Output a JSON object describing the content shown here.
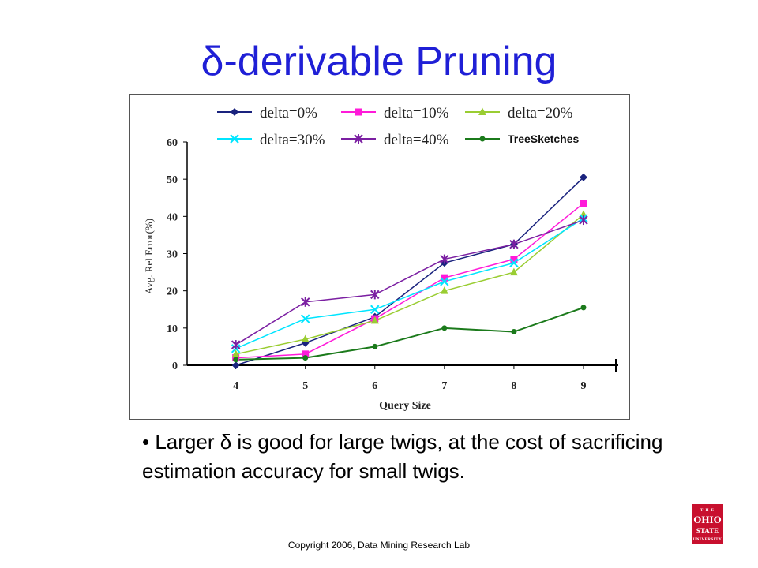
{
  "slide": {
    "title": "δ-derivable Pruning",
    "bullet_marker": "•",
    "bullet": "Larger δ is good for large twigs, at the cost of sacrificing estimation accuracy for small twigs.",
    "footer": "Copyright 2006, Data Mining Research Lab",
    "logo": {
      "line1": "T H E",
      "line2": "OHIO",
      "line3": "STATE",
      "line4": "UNIVERSITY",
      "color": "#c8102e"
    }
  },
  "chart_data": {
    "type": "line",
    "title": "",
    "xlabel": "Query Size",
    "ylabel": "Avg. Rel Error(%)",
    "x": [
      4,
      5,
      6,
      7,
      8,
      9
    ],
    "xlim": [
      3.3,
      9.5
    ],
    "ylim": [
      0,
      60
    ],
    "y_ticks": [
      0,
      10,
      20,
      30,
      40,
      50,
      60
    ],
    "grid": false,
    "legend_position": "top",
    "series": [
      {
        "name": "delta=0%",
        "color": "#1a237e",
        "marker": "diamond",
        "values": [
          0,
          6,
          13,
          27.5,
          32.5,
          50.5
        ]
      },
      {
        "name": "delta=10%",
        "color": "#ff1ad9",
        "marker": "square",
        "values": [
          2,
          3,
          12.5,
          23.5,
          28.5,
          43.5
        ]
      },
      {
        "name": "delta=20%",
        "color": "#9acd32",
        "marker": "triangle",
        "values": [
          3,
          7,
          12,
          20,
          25,
          40.5
        ]
      },
      {
        "name": "delta=30%",
        "color": "#00e5ff",
        "marker": "x",
        "values": [
          4.5,
          12.5,
          15,
          22.5,
          27.5,
          39.5
        ]
      },
      {
        "name": "delta=40%",
        "color": "#7b1fa2",
        "marker": "star",
        "values": [
          5.5,
          17,
          19,
          28.5,
          32.5,
          39
        ]
      },
      {
        "name": "TreeSketches",
        "color": "#1b7a1b",
        "marker": "circle",
        "values": [
          1.5,
          2,
          5,
          10,
          9,
          15.5
        ]
      }
    ]
  }
}
